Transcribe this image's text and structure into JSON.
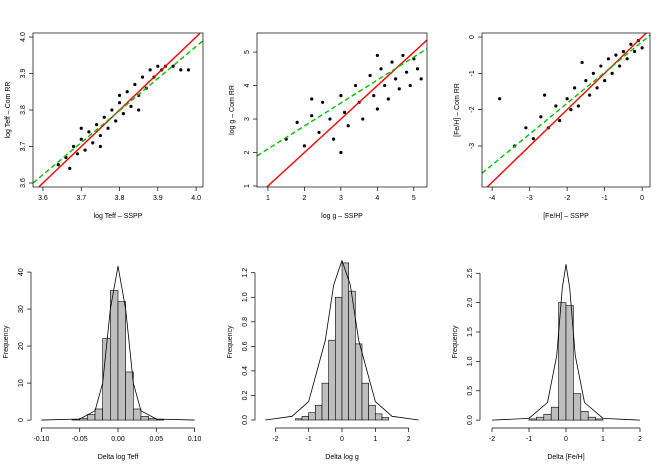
{
  "chart_data": [
    {
      "type": "scatter",
      "xlabel": "log Teff – SSPP",
      "ylabel": "log Teff – Com RR",
      "color": "#000000",
      "x": [
        3.64,
        3.66,
        3.67,
        3.68,
        3.69,
        3.7,
        3.71,
        3.72,
        3.73,
        3.74,
        3.75,
        3.76,
        3.77,
        3.78,
        3.79,
        3.8,
        3.81,
        3.82,
        3.83,
        3.84,
        3.85,
        3.86,
        3.87,
        3.88,
        3.89,
        3.9,
        3.91,
        3.92,
        3.94,
        3.96,
        3.98,
        3.7,
        3.75,
        3.8,
        3.85
      ],
      "y": [
        3.65,
        3.67,
        3.64,
        3.7,
        3.68,
        3.72,
        3.69,
        3.74,
        3.71,
        3.76,
        3.73,
        3.78,
        3.75,
        3.8,
        3.77,
        3.82,
        3.79,
        3.85,
        3.81,
        3.87,
        3.84,
        3.89,
        3.86,
        3.91,
        3.89,
        3.92,
        3.91,
        3.92,
        3.92,
        3.91,
        3.91,
        3.75,
        3.7,
        3.84,
        3.8
      ],
      "lines": [
        {
          "color": "#ff0000",
          "x": [
            3.59,
            4.01
          ],
          "y": [
            3.59,
            4.01
          ]
        },
        {
          "color": "#00c000",
          "dash": true,
          "x": [
            3.574,
            4.018
          ],
          "y": [
            3.6,
            3.99
          ]
        }
      ],
      "xlim": [
        3.574,
        4.018
      ],
      "ylim": [
        3.589,
        4.011
      ],
      "xticks": [
        3.6,
        3.7,
        3.8,
        3.9,
        {
          "value": 4,
          "label": "4.0"
        }
      ],
      "yticks": [
        3.6,
        3.7,
        3.8,
        3.9,
        {
          "value": 4,
          "label": "4.0"
        }
      ]
    },
    {
      "type": "scatter",
      "xlabel": "log g – SSPP",
      "ylabel": "log g – Com RR",
      "color": "#000000",
      "x": [
        1.5,
        1.8,
        2.0,
        2.2,
        2.4,
        2.5,
        2.7,
        2.8,
        3.0,
        3.1,
        3.2,
        3.4,
        3.5,
        3.6,
        3.8,
        3.9,
        4.0,
        4.1,
        4.2,
        4.3,
        4.4,
        4.5,
        4.6,
        4.7,
        4.8,
        4.9,
        5.0,
        5.1,
        5.2,
        3.0,
        4.0,
        2.2
      ],
      "y": [
        2.4,
        2.9,
        2.2,
        3.1,
        2.6,
        3.5,
        3.0,
        2.4,
        3.7,
        3.2,
        2.8,
        4.0,
        3.5,
        3.0,
        4.3,
        3.7,
        3.3,
        4.5,
        4.0,
        3.6,
        4.7,
        4.2,
        3.9,
        4.9,
        4.4,
        4.0,
        4.8,
        4.5,
        4.2,
        2.0,
        4.9,
        3.6
      ],
      "lines": [
        {
          "color": "#ff0000",
          "x": [
            0.97,
            5.36
          ],
          "y": [
            0.97,
            5.36
          ]
        },
        {
          "color": "#00c000",
          "dash": true,
          "x": [
            0.7,
            5.36
          ],
          "y": [
            1.9,
            5.1
          ]
        }
      ],
      "xlim": [
        0.7,
        5.36
      ],
      "ylim": [
        0.97,
        5.57
      ],
      "xticks": [
        1,
        2,
        3,
        4,
        5
      ],
      "yticks": [
        1,
        2,
        3,
        4,
        5
      ]
    },
    {
      "type": "scatter",
      "xlabel": "[Fe/H] – SSPP",
      "ylabel": "[Fe/H] – Com RR",
      "color": "#000000",
      "x": [
        -3.4,
        -3.1,
        -2.9,
        -2.7,
        -2.5,
        -2.3,
        -2.2,
        -2.0,
        -1.9,
        -1.8,
        -1.7,
        -1.5,
        -1.4,
        -1.3,
        -1.2,
        -1.1,
        -1.0,
        -0.9,
        -0.8,
        -0.7,
        -0.6,
        -0.5,
        -0.4,
        -0.3,
        -0.2,
        -0.1,
        0.0,
        -3.8,
        -2.6,
        -1.6
      ],
      "y": [
        -3.0,
        -2.5,
        -2.8,
        -2.2,
        -2.5,
        -1.9,
        -2.3,
        -1.7,
        -2.0,
        -1.4,
        -1.9,
        -1.2,
        -1.6,
        -1.0,
        -1.4,
        -0.8,
        -1.2,
        -0.6,
        -1.0,
        -0.5,
        -0.8,
        -0.4,
        -0.6,
        -0.2,
        -0.4,
        -0.1,
        -0.3,
        -1.7,
        -1.6,
        -0.7
      ],
      "lines": [
        {
          "color": "#ff0000",
          "x": [
            -4.13,
            0.11
          ],
          "y": [
            -4.13,
            0.11
          ]
        },
        {
          "color": "#00c000",
          "dash": true,
          "x": [
            -4.27,
            0.21
          ],
          "y": [
            -3.75,
            0.05
          ]
        }
      ],
      "xlim": [
        -4.27,
        0.21
      ],
      "ylim": [
        -4.13,
        0.11
      ],
      "xticks": [
        -4,
        -3,
        -2,
        -1,
        0
      ],
      "yticks": [
        -3,
        -2,
        -1,
        0
      ]
    },
    {
      "type": "histogram",
      "xlabel": "Delta log Teff",
      "ylabel": "Frequency",
      "color": "#bebebe",
      "bins": [
        -0.06,
        -0.05,
        -0.04,
        -0.03,
        -0.02,
        -0.01,
        0,
        0.01,
        0.02,
        0.03,
        0.04,
        0.05,
        0.06
      ],
      "values": [
        0.2,
        0.5,
        1.5,
        3,
        22,
        35,
        32,
        13,
        3,
        1,
        0.4,
        0.2
      ],
      "curve": {
        "x": [
          -0.1,
          -0.05,
          -0.03,
          -0.02,
          -0.01,
          0,
          0.01,
          0.02,
          0.03,
          0.05,
          0.1
        ],
        "y": [
          0,
          0.3,
          2.5,
          10,
          30,
          41.6,
          30,
          10,
          2.5,
          0.3,
          0
        ]
      },
      "xlim": [
        -0.111,
        0.111
      ],
      "ylim": [
        -1.6,
        43.8
      ],
      "xticks": [
        {
          "value": -0.1,
          "label": "-0.10"
        },
        {
          "value": -0.05,
          "label": "-0.05"
        },
        {
          "value": 0,
          "label": "0.00"
        },
        {
          "value": 0.05,
          "label": "0.05"
        },
        {
          "value": 0.1,
          "label": "0.10"
        }
      ],
      "yticks": [
        0,
        10,
        20,
        30,
        40
      ]
    },
    {
      "type": "histogram",
      "xlabel": "Delta log g",
      "ylabel": "Frequency",
      "color": "#bebebe",
      "bins": [
        -1.4,
        -1.2,
        -1.0,
        -0.8,
        -0.6,
        -0.4,
        -0.2,
        0,
        0.2,
        0.4,
        0.6,
        0.8,
        1.0,
        1.2,
        1.4
      ],
      "values": [
        0.01,
        0.03,
        0.06,
        0.12,
        0.3,
        0.65,
        1.0,
        1.28,
        1.05,
        0.62,
        0.3,
        0.12,
        0.05,
        0.02
      ],
      "curve": {
        "x": [
          -2.3,
          -1.5,
          -1,
          -0.5,
          -0.25,
          0,
          0.25,
          0.5,
          1,
          1.5,
          2.3
        ],
        "y": [
          0,
          0.03,
          0.15,
          0.65,
          1.1,
          1.3,
          1.1,
          0.65,
          0.15,
          0.03,
          0
        ]
      },
      "xlim": [
        -2.55,
        2.55
      ],
      "ylim": [
        -0.049,
        1.32
      ],
      "xticks": [
        -2,
        -1,
        0,
        1,
        2
      ],
      "yticks": [
        {
          "value": 0,
          "label": "0.0"
        },
        0.2,
        0.4,
        0.6,
        0.8,
        {
          "value": 1,
          "label": "1.0"
        },
        1.2
      ]
    },
    {
      "type": "histogram",
      "xlabel": "Delta [Fe/H]",
      "ylabel": "Frequency",
      "color": "#bebebe",
      "bins": [
        -1.0,
        -0.8,
        -0.6,
        -0.4,
        -0.2,
        0,
        0.2,
        0.4,
        0.6,
        0.8,
        1.0
      ],
      "values": [
        0.02,
        0.05,
        0.1,
        0.22,
        2.0,
        1.95,
        0.45,
        0.15,
        0.05,
        0.02
      ],
      "curve": {
        "x": [
          -2,
          -1,
          -0.5,
          -0.25,
          -0.1,
          0,
          0.1,
          0.25,
          0.5,
          1,
          2
        ],
        "y": [
          0,
          0.03,
          0.3,
          1.1,
          2.25,
          2.65,
          2.25,
          1.1,
          0.3,
          0.03,
          0
        ]
      },
      "xlim": [
        -2.27,
        2.27
      ],
      "ylim": [
        -0.1,
        2.76
      ],
      "xticks": [
        -2,
        -1,
        0,
        1,
        2
      ],
      "yticks": [
        {
          "value": 0,
          "label": "0.0"
        },
        0.5,
        {
          "value": 1,
          "label": "1.0"
        },
        1.5,
        {
          "value": 2,
          "label": "2.0"
        },
        2.5
      ]
    }
  ]
}
